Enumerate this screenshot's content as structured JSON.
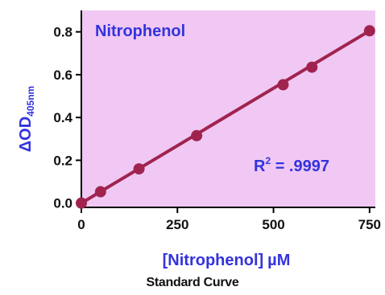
{
  "chart_data": {
    "type": "scatter",
    "title": "Nitrophenol",
    "xlabel_main": "[Nitrophenol]",
    "xlabel_unit": "µM",
    "ylabel_main": "ΔOD",
    "ylabel_sub": "405nm",
    "annotation_main": "R",
    "annotation_sup": "2",
    "annotation_value": " = .9997",
    "xlim": [
      0,
      765
    ],
    "ylim": [
      -0.02,
      0.9
    ],
    "x_ticks": [
      0,
      250,
      500,
      750
    ],
    "x_tick_labels": [
      "0",
      "250",
      "500",
      "750"
    ],
    "y_ticks": [
      0.0,
      0.2,
      0.4,
      0.6,
      0.8
    ],
    "y_tick_labels": [
      "0.0",
      "0.2",
      "0.4",
      "0.6",
      "0.8"
    ],
    "points": [
      {
        "x": 0,
        "y": 0.0
      },
      {
        "x": 50,
        "y": 0.053
      },
      {
        "x": 150,
        "y": 0.16
      },
      {
        "x": 300,
        "y": 0.315
      },
      {
        "x": 525,
        "y": 0.553
      },
      {
        "x": 600,
        "y": 0.635
      },
      {
        "x": 750,
        "y": 0.805
      }
    ],
    "fit_line": {
      "x": [
        0,
        750
      ],
      "y": [
        0.0,
        0.805
      ]
    },
    "colors": {
      "plot_background": "#f0c8f3",
      "marker": "#a0234f",
      "line": "#a0234f",
      "text_accent": "#3333dd",
      "axis": "#000000"
    }
  },
  "caption": "Standard Curve"
}
